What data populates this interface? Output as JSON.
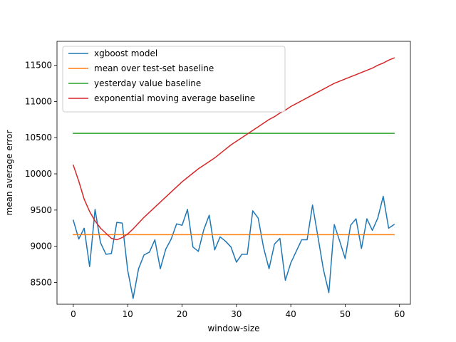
{
  "chart_data": {
    "type": "line",
    "title": "",
    "xlabel": "window-size",
    "ylabel": "mean average error",
    "xlim": [
      -3,
      62
    ],
    "ylim": [
      8200,
      11830
    ],
    "xticks": [
      0,
      10,
      20,
      30,
      40,
      50,
      60
    ],
    "yticks": [
      8500,
      9000,
      9500,
      10000,
      10500,
      11000,
      11500
    ],
    "grid": false,
    "legend_position": "upper-left",
    "series": [
      {
        "name": "xgboost model",
        "color": "#1f77b4",
        "x": [
          0,
          1,
          2,
          3,
          4,
          5,
          6,
          7,
          8,
          9,
          10,
          11,
          12,
          13,
          14,
          15,
          16,
          17,
          18,
          19,
          20,
          21,
          22,
          23,
          24,
          25,
          26,
          27,
          28,
          29,
          30,
          31,
          32,
          33,
          34,
          35,
          36,
          37,
          38,
          39,
          40,
          41,
          42,
          43,
          44,
          45,
          46,
          47,
          48,
          49,
          50,
          51,
          52,
          53,
          54,
          55,
          56,
          57,
          58,
          59
        ],
        "y": [
          9360,
          9100,
          9250,
          8720,
          9510,
          9050,
          8890,
          8900,
          9330,
          9320,
          8670,
          8280,
          8690,
          8880,
          8920,
          9090,
          8690,
          8960,
          9100,
          9310,
          9290,
          9510,
          8990,
          8930,
          9230,
          9430,
          8950,
          9130,
          9070,
          8990,
          8780,
          8890,
          8890,
          9490,
          9390,
          8980,
          8690,
          9030,
          9110,
          8530,
          8770,
          8930,
          9090,
          9090,
          9570,
          9130,
          8680,
          8360,
          9300,
          9070,
          8830,
          9290,
          9380,
          8970,
          9380,
          9220,
          9390,
          9690,
          9250,
          9300
        ]
      },
      {
        "name": "mean over test-set baseline",
        "color": "#ff7f0e",
        "x": [
          0,
          59
        ],
        "y": [
          9160,
          9160
        ]
      },
      {
        "name": "yesterday value baseline",
        "color": "#2ca02c",
        "x": [
          0,
          59
        ],
        "y": [
          10560,
          10560
        ]
      },
      {
        "name": "exponential moving average baseline",
        "color": "#d62728",
        "x": [
          0,
          1,
          2,
          3,
          4,
          5,
          6,
          7,
          8,
          9,
          10,
          11,
          12,
          13,
          14,
          15,
          16,
          17,
          18,
          19,
          20,
          21,
          22,
          23,
          24,
          25,
          26,
          27,
          28,
          29,
          30,
          31,
          32,
          33,
          34,
          35,
          36,
          37,
          38,
          39,
          40,
          41,
          42,
          43,
          44,
          45,
          46,
          47,
          48,
          49,
          50,
          51,
          52,
          53,
          54,
          55,
          56,
          57,
          58,
          59
        ],
        "y": [
          10120,
          9900,
          9650,
          9480,
          9350,
          9250,
          9180,
          9110,
          9090,
          9120,
          9170,
          9240,
          9320,
          9400,
          9470,
          9540,
          9610,
          9680,
          9750,
          9820,
          9890,
          9950,
          10010,
          10070,
          10120,
          10170,
          10220,
          10280,
          10340,
          10400,
          10450,
          10500,
          10550,
          10600,
          10650,
          10700,
          10750,
          10790,
          10840,
          10880,
          10930,
          10970,
          11010,
          11050,
          11090,
          11130,
          11170,
          11210,
          11250,
          11280,
          11310,
          11340,
          11370,
          11400,
          11430,
          11460,
          11500,
          11530,
          11570,
          11600
        ]
      }
    ]
  }
}
